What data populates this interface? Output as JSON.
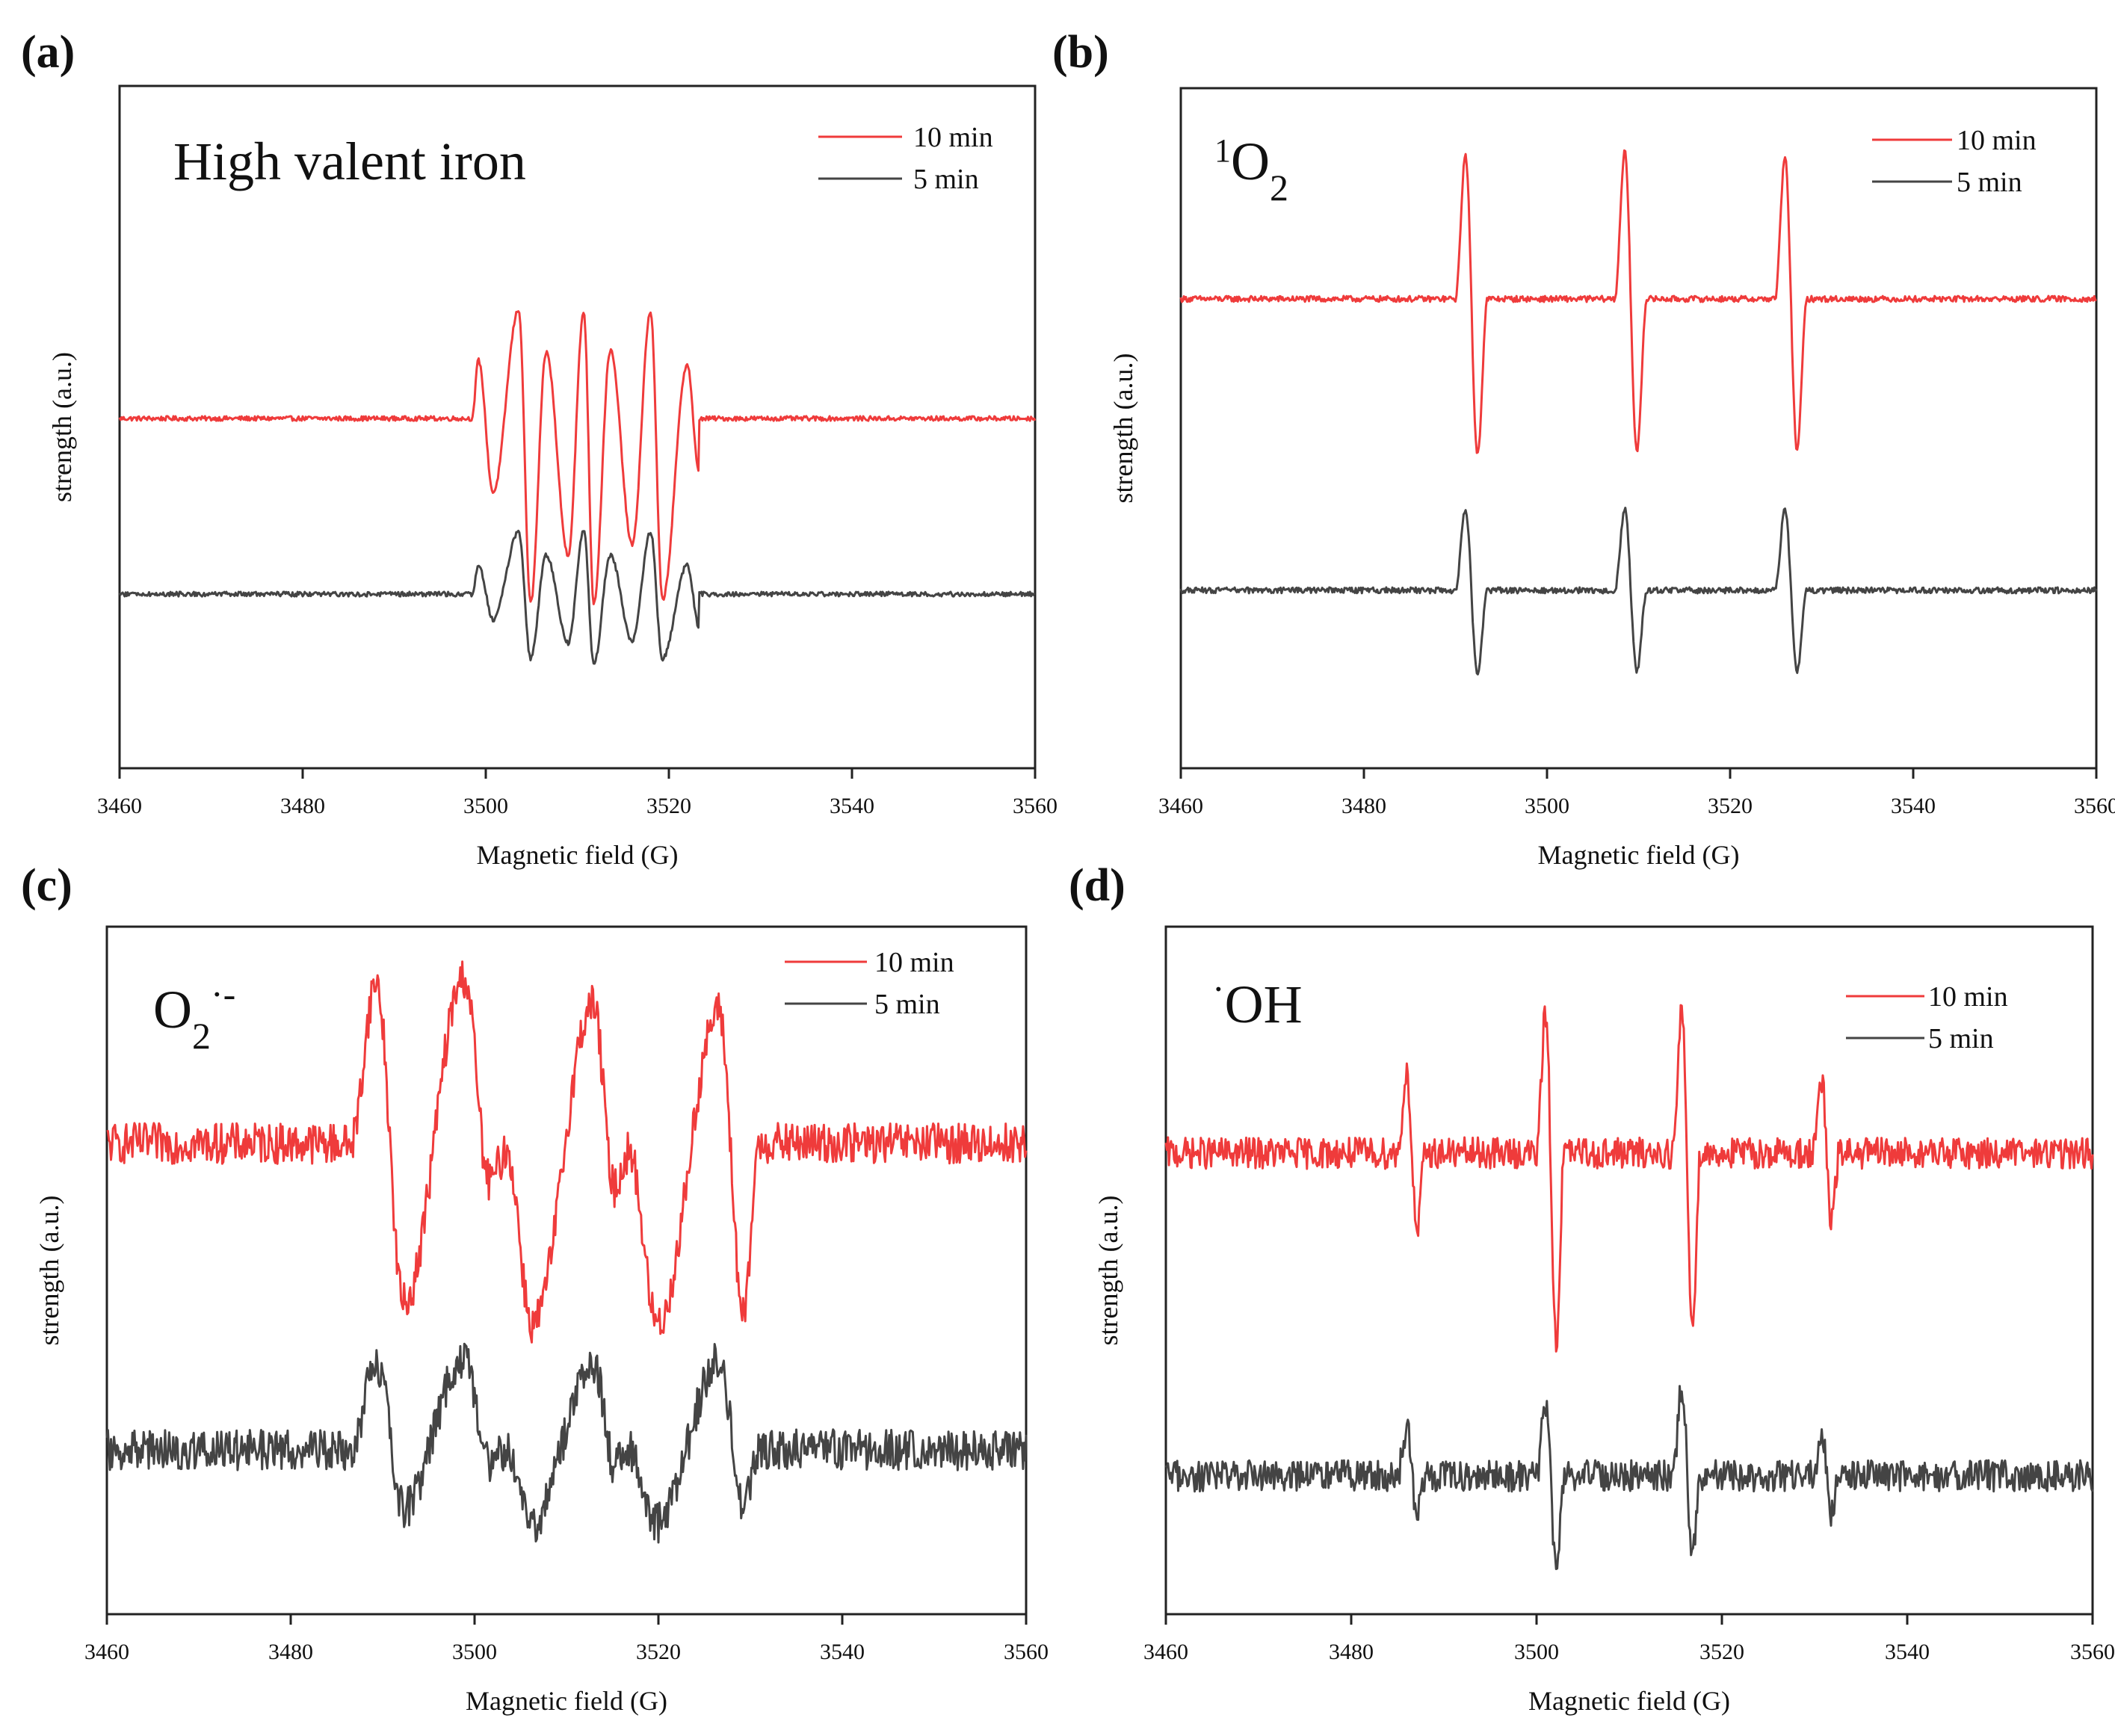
{
  "figure": {
    "colors": {
      "series_10min": "#ef3b3b",
      "series_5min": "#444444",
      "axis": "#222222"
    }
  },
  "chart_data": [
    {
      "panel_label": "(a)",
      "type": "line",
      "title": "High valent iron",
      "xlabel": "Magnetic field (G)",
      "ylabel": "strength (a.u.)",
      "xlim": [
        3460,
        3560
      ],
      "xticks": [
        3460,
        3480,
        3500,
        3520,
        3540,
        3560
      ],
      "legend_position": "top-right",
      "series": [
        {
          "name": "10 min",
          "baseline": 1.0,
          "x": [
            3498.5,
            3499.2,
            3500.8,
            3503.6,
            3504.9,
            3506.6,
            3509.0,
            3510.7,
            3511.8,
            3513.6,
            3516.0,
            3518.0,
            3519.3,
            3522.0,
            3523.3
          ],
          "y": [
            1.0,
            1.3,
            0.62,
            1.56,
            0.05,
            1.34,
            0.3,
            1.55,
            0.05,
            1.35,
            0.35,
            1.55,
            0.07,
            1.28,
            0.72
          ]
        },
        {
          "name": "5 min",
          "baseline": 0.0,
          "x": [
            3498.5,
            3499.2,
            3500.8,
            3503.6,
            3504.9,
            3506.6,
            3509.0,
            3510.7,
            3511.8,
            3513.6,
            3516.0,
            3518.0,
            3519.3,
            3522.0,
            3523.3
          ],
          "y": [
            0.0,
            0.15,
            -0.13,
            0.32,
            -0.33,
            0.2,
            -0.25,
            0.33,
            -0.36,
            0.2,
            -0.24,
            0.32,
            -0.33,
            0.15,
            -0.17
          ]
        }
      ]
    },
    {
      "panel_label": "(b)",
      "type": "line",
      "title": "1O2",
      "xlabel": "Magnetic field (G)",
      "ylabel": "strength (a.u.)",
      "xlim": [
        3460,
        3560
      ],
      "xticks": [
        3460,
        3480,
        3500,
        3520,
        3540,
        3560
      ],
      "legend_position": "top-right",
      "series": [
        {
          "name": "10 min",
          "baseline": 1.0,
          "x": [
            3490.0,
            3491.1,
            3492.4,
            3493.5,
            3507.4,
            3508.5,
            3509.8,
            3510.9,
            3524.9,
            3526.0,
            3527.3,
            3528.4
          ],
          "y": [
            1.0,
            1.48,
            0.48,
            1.0,
            1.0,
            1.49,
            0.49,
            1.0,
            1.0,
            1.47,
            0.5,
            1.0
          ]
        },
        {
          "name": "5 min",
          "baseline": 0.0,
          "x": [
            3490.0,
            3491.1,
            3492.4,
            3493.5,
            3507.4,
            3508.5,
            3509.8,
            3510.9,
            3524.9,
            3526.0,
            3527.3,
            3528.4
          ],
          "y": [
            0.0,
            0.27,
            -0.28,
            0.0,
            0.0,
            0.27,
            -0.27,
            0.0,
            0.0,
            0.27,
            -0.27,
            0.0
          ]
        }
      ]
    },
    {
      "panel_label": "(c)",
      "type": "line",
      "title": "O2·-",
      "xlabel": "Magnetic field (G)",
      "ylabel": "strength (a.u.)",
      "xlim": [
        3460,
        3560
      ],
      "xticks": [
        3460,
        3480,
        3500,
        3520,
        3540,
        3560
      ],
      "legend_position": "top-right",
      "series": [
        {
          "name": "10 min",
          "baseline": 1.0,
          "x": [
            3486.5,
            3489.3,
            3492.3,
            3498.9,
            3501.6,
            3503.5,
            3506.3,
            3512.9,
            3515.2,
            3516.8,
            3519.9,
            3526.6,
            3529.3,
            3530.8
          ],
          "y": [
            1.0,
            1.55,
            0.45,
            1.57,
            0.87,
            0.97,
            0.38,
            1.48,
            0.85,
            0.97,
            0.38,
            1.45,
            0.4,
            0.95
          ]
        },
        {
          "name": "5 min",
          "baseline": 0.0,
          "x": [
            3486.5,
            3489.3,
            3492.3,
            3498.9,
            3501.6,
            3503.5,
            3506.3,
            3512.9,
            3515.2,
            3516.8,
            3519.9,
            3526.6,
            3529.3,
            3530.8
          ],
          "y": [
            0.0,
            0.3,
            -0.2,
            0.32,
            -0.05,
            0.0,
            -0.25,
            0.3,
            -0.05,
            0.0,
            -0.25,
            0.3,
            -0.2,
            0.0
          ]
        }
      ]
    },
    {
      "panel_label": "(d)",
      "type": "line",
      "title": "·OH",
      "xlabel": "Magnetic field (G)",
      "ylabel": "strength (a.u.)",
      "xlim": [
        3460,
        3560
      ],
      "xticks": [
        3460,
        3480,
        3500,
        3520,
        3540,
        3560
      ],
      "legend_position": "top-right",
      "series": [
        {
          "name": "10 min",
          "baseline": 1.0,
          "x": [
            3485.0,
            3486.0,
            3487.1,
            3488.0,
            3500.0,
            3501.0,
            3502.1,
            3503.0,
            3514.7,
            3515.7,
            3516.8,
            3517.7,
            3529.8,
            3530.8,
            3531.8,
            3532.7
          ],
          "y": [
            1.0,
            1.25,
            0.75,
            1.0,
            1.0,
            1.45,
            0.4,
            1.0,
            1.0,
            1.45,
            0.45,
            1.0,
            1.0,
            1.22,
            0.78,
            1.0
          ]
        },
        {
          "name": "5 min",
          "baseline": 0.0,
          "x": [
            3485.0,
            3486.0,
            3487.1,
            3488.0,
            3500.0,
            3501.0,
            3502.1,
            3503.0,
            3514.7,
            3515.7,
            3516.8,
            3517.7,
            3529.8,
            3530.8,
            3531.8,
            3532.7
          ],
          "y": [
            0.0,
            0.15,
            -0.12,
            0.0,
            0.0,
            0.23,
            -0.28,
            0.0,
            0.0,
            0.28,
            -0.23,
            0.0,
            0.0,
            0.15,
            -0.12,
            0.0
          ]
        }
      ]
    }
  ]
}
